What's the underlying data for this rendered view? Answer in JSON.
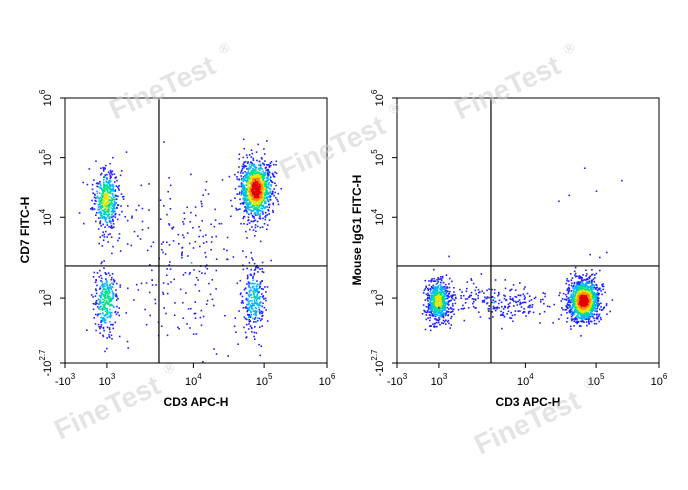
{
  "watermark": "FineTest",
  "watermark_mark": "®",
  "colors": {
    "scale": [
      "#1f1fff",
      "#00b4ff",
      "#00e08a",
      "#e6e600",
      "#ff8a00",
      "#e00000"
    ],
    "gate_line": "#000000",
    "axis": "#000000"
  },
  "chart_data": [
    {
      "type": "scatter",
      "subtype": "flow-cytometry-density-dotplot",
      "xlabel": "CD3 APC-H",
      "ylabel": "CD7 FITC-H",
      "x_ticks": [
        {
          "value": -1000,
          "base": "-10",
          "exp": "3"
        },
        {
          "value": 1000,
          "base": "10",
          "exp": "3"
        },
        {
          "value": 10000,
          "base": "10",
          "exp": "4"
        },
        {
          "value": 100000,
          "base": "10",
          "exp": "5"
        },
        {
          "value": 1000000,
          "base": "10",
          "exp": "6"
        }
      ],
      "y_ticks": [
        {
          "value": -500,
          "base": "-10",
          "exp": "2.7"
        },
        {
          "value": 1000,
          "base": "10",
          "exp": "3"
        },
        {
          "value": 10000,
          "base": "10",
          "exp": "4"
        },
        {
          "value": 100000,
          "base": "10",
          "exp": "5"
        },
        {
          "value": 1000000,
          "base": "10",
          "exp": "6"
        }
      ],
      "gate": {
        "x": 4000,
        "y": 2500
      },
      "populations": [
        {
          "x": 600,
          "y": 20000,
          "count": 430,
          "spread_x": 0.14,
          "spread_y": 0.32,
          "peak": 0.55
        },
        {
          "x": 75000,
          "y": 30000,
          "count": 1150,
          "spread_x": 0.17,
          "spread_y": 0.3,
          "peak": 1.0
        },
        {
          "x": 600,
          "y": 550,
          "count": 300,
          "spread_x": 0.12,
          "spread_y": 0.35,
          "peak": 0.45
        },
        {
          "x": 70000,
          "y": 900,
          "count": 260,
          "spread_x": 0.12,
          "spread_y": 0.38,
          "peak": 0.3
        },
        {
          "x": 8000,
          "y": 3000,
          "count": 220,
          "spread_x": 0.7,
          "spread_y": 1.0,
          "peak": 0.1
        }
      ]
    },
    {
      "type": "scatter",
      "subtype": "flow-cytometry-density-dotplot",
      "xlabel": "CD3 APC-H",
      "ylabel": "Mouse IgG1 FITC-H",
      "x_ticks": [
        {
          "value": -1000,
          "base": "-10",
          "exp": "3"
        },
        {
          "value": 1000,
          "base": "10",
          "exp": "3"
        },
        {
          "value": 10000,
          "base": "10",
          "exp": "4"
        },
        {
          "value": 100000,
          "base": "10",
          "exp": "5"
        },
        {
          "value": 1000000,
          "base": "10",
          "exp": "6"
        }
      ],
      "y_ticks": [
        {
          "value": -500,
          "base": "-10",
          "exp": "2.7"
        },
        {
          "value": 1000,
          "base": "10",
          "exp": "3"
        },
        {
          "value": 10000,
          "base": "10",
          "exp": "4"
        },
        {
          "value": 100000,
          "base": "10",
          "exp": "5"
        },
        {
          "value": 1000000,
          "base": "10",
          "exp": "6"
        }
      ],
      "gate": {
        "x": 4000,
        "y": 2500
      },
      "populations": [
        {
          "x": 600,
          "y": 600,
          "count": 620,
          "spread_x": 0.12,
          "spread_y": 0.22,
          "peak": 0.6
        },
        {
          "x": 65000,
          "y": 650,
          "count": 1250,
          "spread_x": 0.17,
          "spread_y": 0.22,
          "peak": 1.0
        },
        {
          "x": 5000,
          "y": 600,
          "count": 220,
          "spread_x": 0.55,
          "spread_y": 0.2,
          "peak": 0.1
        },
        {
          "x": 70000,
          "y": 5000,
          "count": 10,
          "spread_x": 0.4,
          "spread_y": 0.9,
          "peak": 0.05
        }
      ]
    }
  ]
}
